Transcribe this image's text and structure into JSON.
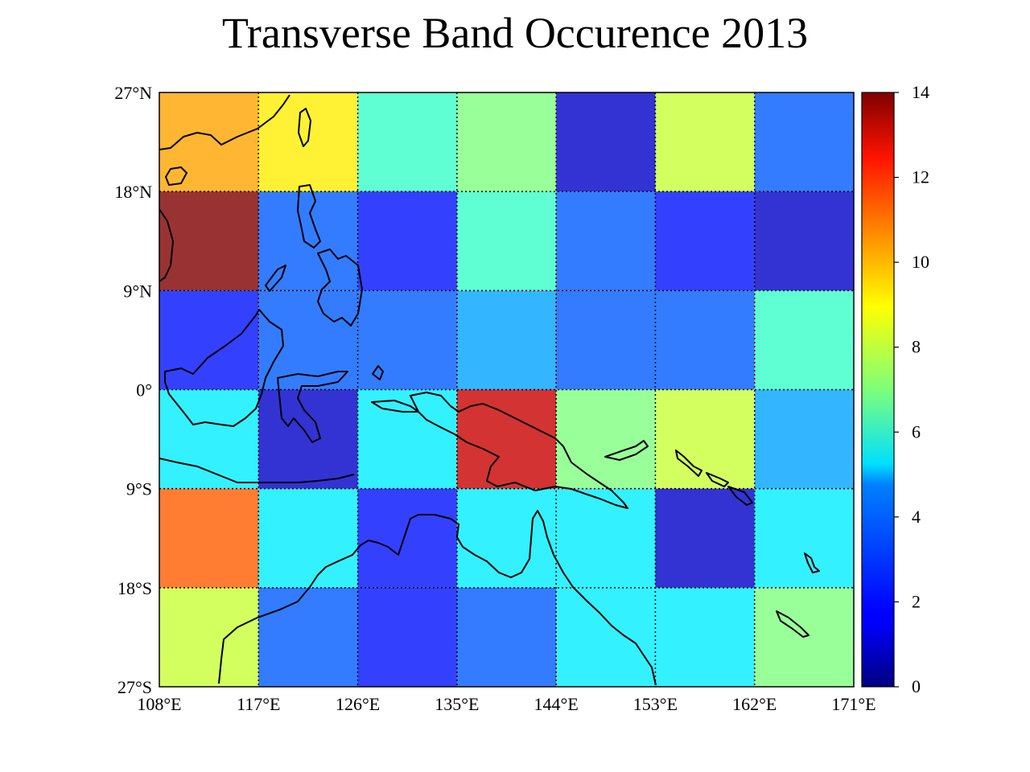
{
  "chart_data": {
    "type": "heatmap",
    "title": "Transverse Band Occurence 2013",
    "x_ticks": [
      "108°E",
      "117°E",
      "126°E",
      "135°E",
      "144°E",
      "153°E",
      "162°E",
      "171°E"
    ],
    "y_ticks": [
      "27°N",
      "18°N",
      "9°N",
      "0°",
      "9°S",
      "18°S",
      "27°S"
    ],
    "x_range": [
      108,
      171
    ],
    "y_range": [
      -27,
      27
    ],
    "cell_size_deg": 9,
    "grid": true,
    "basemap": "coastlines",
    "colormap": "jet",
    "colorbar": {
      "min": 0,
      "max": 14,
      "ticks": [
        "0",
        "2",
        "4",
        "6",
        "8",
        "10",
        "12",
        "14"
      ],
      "position": "right"
    },
    "rows_lat_from": [
      27,
      18,
      9,
      0,
      -9,
      -18
    ],
    "cols_lon_from": [
      108,
      117,
      126,
      135,
      144,
      153,
      162
    ],
    "values": [
      [
        10,
        9,
        6,
        7,
        1,
        8,
        3
      ],
      [
        14,
        3,
        2,
        6,
        3,
        2,
        1
      ],
      [
        2,
        3,
        3,
        4,
        3,
        3,
        6
      ],
      [
        5,
        1,
        5,
        13,
        7,
        8,
        4
      ],
      [
        11,
        5,
        2,
        5,
        5,
        1,
        5
      ],
      [
        8,
        3,
        2,
        3,
        5,
        5,
        7
      ]
    ]
  }
}
